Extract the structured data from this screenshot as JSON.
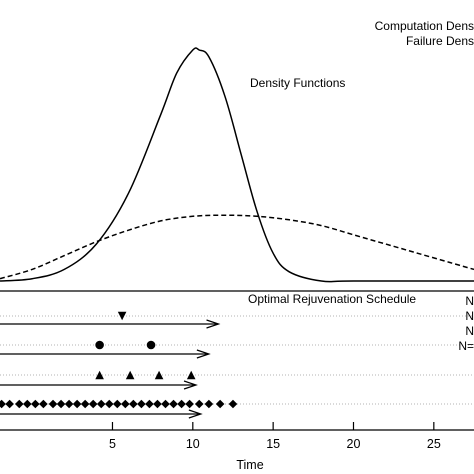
{
  "chart_data": [
    {
      "type": "line",
      "title": "Density Functions",
      "xlabel": "Time",
      "ylabel": "",
      "xlim": [
        -2,
        27.5
      ],
      "ylim": [
        0,
        1
      ],
      "grid": false,
      "legend_position": "top-right",
      "series": [
        {
          "name": "Computation Density",
          "style": "solid",
          "x": [
            -2,
            0,
            2,
            4,
            6,
            8,
            9,
            10,
            10.4,
            11,
            12,
            13,
            14,
            15,
            16,
            18,
            20,
            27.5
          ],
          "values": [
            0.0,
            0.01,
            0.05,
            0.16,
            0.38,
            0.72,
            0.9,
            1.0,
            1.0,
            0.97,
            0.8,
            0.55,
            0.3,
            0.12,
            0.04,
            0.0,
            0.0,
            0.0
          ]
        },
        {
          "name": "Failure Density",
          "style": "dashed",
          "x": [
            -2,
            0,
            2,
            4,
            6,
            8,
            10,
            12,
            14,
            16,
            18,
            20,
            22,
            24,
            26,
            27.5
          ],
          "values": [
            0.01,
            0.05,
            0.11,
            0.17,
            0.22,
            0.26,
            0.28,
            0.285,
            0.28,
            0.265,
            0.24,
            0.2,
            0.16,
            0.12,
            0.08,
            0.05
          ]
        }
      ]
    },
    {
      "type": "scatter",
      "title": "Optimal Rejuvenation Schedule",
      "xlabel": "Time",
      "xlim": [
        -2,
        27.5
      ],
      "x_ticks": [
        "5",
        "10",
        "15",
        "20",
        "25"
      ],
      "tick_values": [
        5,
        10,
        15,
        20,
        25
      ],
      "series": [
        {
          "name": "N",
          "marker": "triangle-down",
          "arrow_end": 11.6,
          "x": [
            5.6
          ]
        },
        {
          "name": "N",
          "marker": "circle",
          "arrow_end": 11.0,
          "x": [
            4.2,
            7.4
          ]
        },
        {
          "name": "N",
          "marker": "triangle-up",
          "arrow_end": 10.2,
          "x": [
            4.2,
            6.1,
            7.9,
            9.9
          ]
        },
        {
          "name": "N=",
          "marker": "diamond",
          "arrow_end": 10.5,
          "x": [
            -1.9,
            -1.4,
            -0.8,
            -0.3,
            0.2,
            0.7,
            1.3,
            1.8,
            2.3,
            2.8,
            3.3,
            3.8,
            4.3,
            4.8,
            5.3,
            5.8,
            6.3,
            6.8,
            7.3,
            7.8,
            8.3,
            8.8,
            9.3,
            9.8,
            10.4,
            11.0,
            11.7,
            12.5
          ]
        }
      ]
    }
  ],
  "legend": {
    "computation": "Computation Dens",
    "failure": "Failure Dens"
  },
  "colors": {
    "lines": "#000000",
    "guides": "#9a9a9a",
    "background": "#ffffff"
  }
}
